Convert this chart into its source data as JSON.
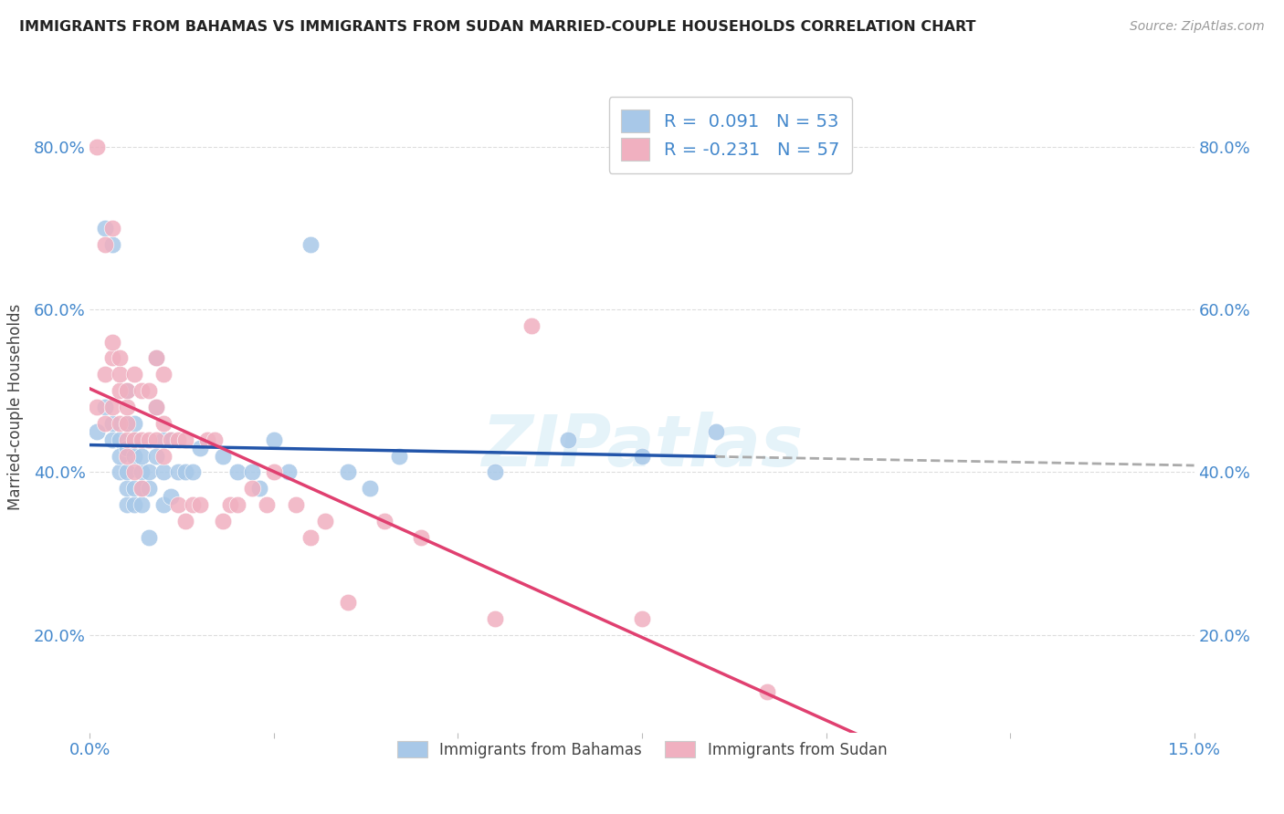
{
  "title": "IMMIGRANTS FROM BAHAMAS VS IMMIGRANTS FROM SUDAN MARRIED-COUPLE HOUSEHOLDS CORRELATION CHART",
  "source": "Source: ZipAtlas.com",
  "ylabel_label": "Married-couple Households",
  "xlim": [
    0.0,
    0.15
  ],
  "ylim": [
    0.08,
    0.88
  ],
  "legend_r_bahamas": "R =  0.091",
  "legend_n_bahamas": "N = 53",
  "legend_r_sudan": "R = -0.231",
  "legend_n_sudan": "N = 57",
  "color_bahamas": "#a8c8e8",
  "color_sudan": "#f0b0c0",
  "trendline_bahamas_color": "#2255aa",
  "trendline_sudan_color": "#e04070",
  "trendline_dashed_color": "#aaaaaa",
  "axis_label_color": "#4488cc",
  "background_color": "#ffffff",
  "grid_color": "#dddddd",
  "bahamas_x": [
    0.001,
    0.002,
    0.002,
    0.003,
    0.003,
    0.003,
    0.004,
    0.004,
    0.004,
    0.005,
    0.005,
    0.005,
    0.005,
    0.005,
    0.005,
    0.006,
    0.006,
    0.006,
    0.006,
    0.006,
    0.007,
    0.007,
    0.007,
    0.007,
    0.008,
    0.008,
    0.008,
    0.009,
    0.009,
    0.009,
    0.01,
    0.01,
    0.01,
    0.011,
    0.011,
    0.012,
    0.013,
    0.014,
    0.015,
    0.018,
    0.02,
    0.022,
    0.023,
    0.025,
    0.027,
    0.03,
    0.035,
    0.038,
    0.042,
    0.055,
    0.065,
    0.075,
    0.085
  ],
  "bahamas_y": [
    0.45,
    0.48,
    0.7,
    0.44,
    0.46,
    0.68,
    0.4,
    0.42,
    0.44,
    0.36,
    0.38,
    0.4,
    0.43,
    0.46,
    0.5,
    0.36,
    0.38,
    0.42,
    0.44,
    0.46,
    0.36,
    0.38,
    0.4,
    0.42,
    0.32,
    0.38,
    0.4,
    0.42,
    0.48,
    0.54,
    0.36,
    0.4,
    0.44,
    0.37,
    0.44,
    0.4,
    0.4,
    0.4,
    0.43,
    0.42,
    0.4,
    0.4,
    0.38,
    0.44,
    0.4,
    0.68,
    0.4,
    0.38,
    0.42,
    0.4,
    0.44,
    0.42,
    0.45
  ],
  "sudan_x": [
    0.001,
    0.001,
    0.002,
    0.002,
    0.002,
    0.003,
    0.003,
    0.003,
    0.003,
    0.004,
    0.004,
    0.004,
    0.004,
    0.005,
    0.005,
    0.005,
    0.005,
    0.005,
    0.006,
    0.006,
    0.006,
    0.007,
    0.007,
    0.007,
    0.008,
    0.008,
    0.009,
    0.009,
    0.009,
    0.01,
    0.01,
    0.01,
    0.011,
    0.012,
    0.012,
    0.013,
    0.013,
    0.014,
    0.015,
    0.016,
    0.017,
    0.018,
    0.019,
    0.02,
    0.022,
    0.024,
    0.025,
    0.028,
    0.03,
    0.032,
    0.035,
    0.04,
    0.045,
    0.055,
    0.06,
    0.075,
    0.092
  ],
  "sudan_y": [
    0.8,
    0.48,
    0.52,
    0.46,
    0.68,
    0.48,
    0.54,
    0.56,
    0.7,
    0.46,
    0.5,
    0.52,
    0.54,
    0.42,
    0.44,
    0.46,
    0.48,
    0.5,
    0.4,
    0.44,
    0.52,
    0.38,
    0.44,
    0.5,
    0.44,
    0.5,
    0.44,
    0.48,
    0.54,
    0.42,
    0.46,
    0.52,
    0.44,
    0.36,
    0.44,
    0.34,
    0.44,
    0.36,
    0.36,
    0.44,
    0.44,
    0.34,
    0.36,
    0.36,
    0.38,
    0.36,
    0.4,
    0.36,
    0.32,
    0.34,
    0.24,
    0.34,
    0.32,
    0.22,
    0.58,
    0.22,
    0.13
  ]
}
